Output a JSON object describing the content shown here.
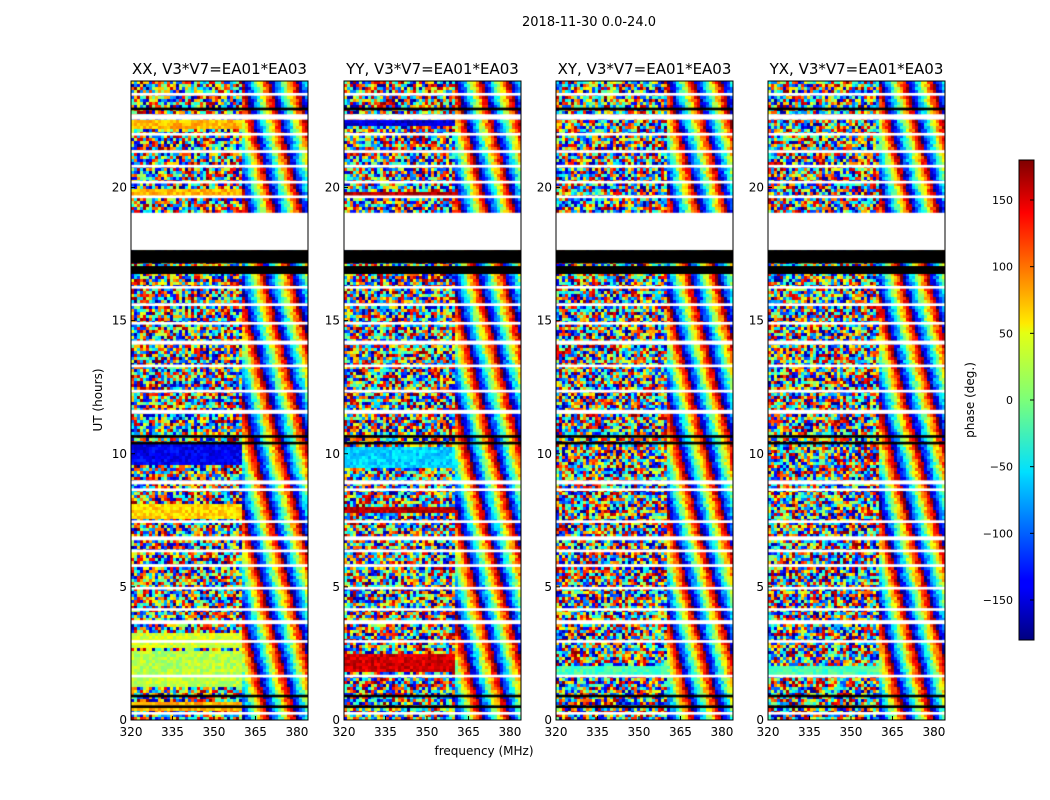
{
  "figure": {
    "suptitle": "2018-11-30 0.0-24.0",
    "xlabel": "frequency (MHz)",
    "ylabel": "UT (hours)",
    "colorbar_label": "phase (deg.)",
    "colorbar_ticks": [
      150,
      100,
      50,
      0,
      -50,
      -100,
      -150
    ],
    "colorbar_tick_labels": [
      "150",
      "100",
      "50",
      "0",
      "−50",
      "−100",
      "−150"
    ],
    "colorbar_range": [
      -180,
      180
    ],
    "colormap": "jet",
    "colors": {
      "flagged_black": "#000000",
      "blank_white": "#ffffff"
    }
  },
  "chart_data": [
    {
      "type": "heatmap",
      "title": "XX, V3*V7=EA01*EA03",
      "polarization": "XX",
      "x_ticks": [
        320,
        335,
        350,
        365,
        380
      ],
      "x_tick_labels": [
        "320",
        "335",
        "350",
        "365",
        "380"
      ],
      "xlim": [
        320,
        384
      ],
      "y_ticks": [
        0,
        5,
        10,
        15,
        20
      ],
      "y_tick_labels": [
        "0",
        "5",
        "10",
        "15",
        "20"
      ],
      "ylim": [
        0,
        24
      ],
      "coherent_bands": [
        {
          "ut": [
            0.4,
            0.7
          ],
          "freq": [
            320,
            360
          ],
          "phase": 70
        },
        {
          "ut": [
            1.3,
            2.7
          ],
          "freq": [
            320,
            360
          ],
          "phase": 20
        },
        {
          "ut": [
            2.8,
            3.3
          ],
          "freq": [
            320,
            360
          ],
          "phase": 30
        },
        {
          "ut": [
            7.6,
            8.2
          ],
          "freq": [
            320,
            360
          ],
          "phase": 60
        },
        {
          "ut": [
            9.6,
            10.4
          ],
          "freq": [
            320,
            360
          ],
          "phase": -140
        },
        {
          "ut": [
            19.7,
            20.0
          ],
          "freq": [
            320,
            360
          ],
          "phase": 70
        },
        {
          "ut": [
            22.3,
            22.6
          ],
          "freq": [
            320,
            360
          ],
          "phase": 70
        }
      ]
    },
    {
      "type": "heatmap",
      "title": "YY, V3*V7=EA01*EA03",
      "polarization": "YY",
      "x_ticks": [
        320,
        335,
        350,
        365,
        380
      ],
      "x_tick_labels": [
        "320",
        "335",
        "350",
        "365",
        "380"
      ],
      "xlim": [
        320,
        384
      ],
      "y_ticks": [
        0,
        5,
        10,
        15,
        20
      ],
      "y_tick_labels": [
        "0",
        "5",
        "10",
        "15",
        "20"
      ],
      "ylim": [
        0,
        24
      ],
      "coherent_bands": [
        {
          "ut": [
            1.9,
            2.5
          ],
          "freq": [
            320,
            360
          ],
          "phase": 150
        },
        {
          "ut": [
            7.8,
            8.1
          ],
          "freq": [
            320,
            360
          ],
          "phase": 160
        },
        {
          "ut": [
            9.5,
            10.3
          ],
          "freq": [
            320,
            360
          ],
          "phase": -60
        },
        {
          "ut": [
            19.7,
            19.9
          ],
          "freq": [
            320,
            360
          ],
          "phase": 160
        },
        {
          "ut": [
            22.4,
            22.6
          ],
          "freq": [
            320,
            360
          ],
          "phase": -150
        }
      ]
    },
    {
      "type": "heatmap",
      "title": "XY, V3*V7=EA01*EA03",
      "polarization": "XY",
      "x_ticks": [
        320,
        335,
        350,
        365,
        380
      ],
      "x_tick_labels": [
        "320",
        "335",
        "350",
        "365",
        "380"
      ],
      "xlim": [
        320,
        384
      ],
      "y_ticks": [
        0,
        5,
        10,
        15,
        20
      ],
      "y_tick_labels": [
        "0",
        "5",
        "10",
        "15",
        "20"
      ],
      "ylim": [
        0,
        24
      ],
      "coherent_bands": [
        {
          "ut": [
            1.8,
            2.1
          ],
          "freq": [
            320,
            360
          ],
          "phase": -20
        }
      ]
    },
    {
      "type": "heatmap",
      "title": "YX, V3*V7=EA01*EA03",
      "polarization": "YX",
      "x_ticks": [
        320,
        335,
        350,
        365,
        380
      ],
      "x_tick_labels": [
        "320",
        "335",
        "350",
        "365",
        "380"
      ],
      "xlim": [
        320,
        384
      ],
      "y_ticks": [
        0,
        5,
        10,
        15,
        20
      ],
      "y_tick_labels": [
        "0",
        "5",
        "10",
        "15",
        "20"
      ],
      "ylim": [
        0,
        24
      ],
      "coherent_bands": [
        {
          "ut": [
            1.8,
            2.1
          ],
          "freq": [
            320,
            360
          ],
          "phase": -20
        }
      ]
    }
  ],
  "flag_data": {
    "black_bands_ut": [
      [
        0.45,
        0.55
      ],
      [
        0.85,
        0.95
      ],
      [
        10.35,
        10.45
      ],
      [
        10.6,
        10.7
      ],
      [
        16.75,
        17.05
      ],
      [
        17.15,
        17.65
      ],
      [
        22.9,
        23.0
      ]
    ],
    "blank_gap_ut": [
      19.0,
      18.2
    ],
    "blank_gap_full_ut": [
      17.65,
      19.05
    ],
    "white_bands_ut": [
      [
        0.2,
        0.3
      ],
      [
        1.6,
        1.7
      ],
      [
        2.9,
        3.0
      ],
      [
        3.6,
        3.75
      ],
      [
        4.1,
        4.2
      ],
      [
        4.9,
        5.0
      ],
      [
        5.75,
        5.85
      ],
      [
        6.3,
        6.4
      ],
      [
        6.75,
        6.9
      ],
      [
        7.4,
        7.5
      ],
      [
        8.6,
        8.7
      ],
      [
        8.85,
        9.0
      ],
      [
        11.5,
        11.65
      ],
      [
        12.3,
        12.4
      ],
      [
        13.25,
        13.35
      ],
      [
        14.1,
        14.25
      ],
      [
        14.85,
        14.95
      ],
      [
        15.55,
        15.65
      ],
      [
        16.2,
        16.3
      ],
      [
        19.6,
        19.7
      ],
      [
        20.15,
        20.25
      ],
      [
        20.75,
        20.85
      ],
      [
        21.3,
        21.4
      ],
      [
        21.95,
        22.05
      ],
      [
        22.55,
        22.75
      ],
      [
        23.45,
        23.55
      ]
    ]
  }
}
